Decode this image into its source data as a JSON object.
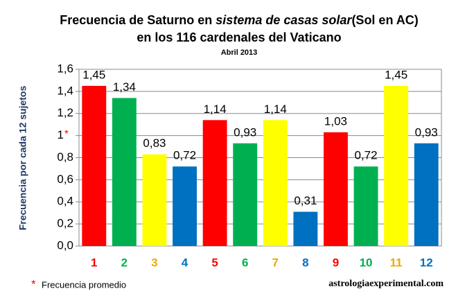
{
  "chart_data": {
    "type": "bar",
    "title": {
      "before": "Frecuencia de Saturno en ",
      "italic": "sistema de casas solar",
      "after": "(Sol en AC)"
    },
    "title_line2": "en los 116 cardenales del Vaticano",
    "subtitle": "Abril 2013",
    "y_label": "Frecuencia por cada 12 sujetos",
    "categories": [
      "1",
      "2",
      "3",
      "4",
      "5",
      "6",
      "7",
      "8",
      "9",
      "10",
      "11",
      "12"
    ],
    "values": [
      1.45,
      1.34,
      0.83,
      0.72,
      1.14,
      0.93,
      1.14,
      0.31,
      1.03,
      0.72,
      1.45,
      0.93
    ],
    "value_labels": [
      "1,45",
      "1,34",
      "0,83",
      "0,72",
      "1,14",
      "0,93",
      "1,14",
      "0,31",
      "1,03",
      "0,72",
      "1,45",
      "0,93"
    ],
    "colors": [
      "#ff0000",
      "#00b050",
      "#ffff00",
      "#0070c0",
      "#ff0000",
      "#00b050",
      "#ffff00",
      "#0070c0",
      "#ff0000",
      "#00b050",
      "#ffff00",
      "#0070c0"
    ],
    "category_label_colors": [
      "#ff0000",
      "#00b050",
      "#f0a800",
      "#0070c0",
      "#ff0000",
      "#00b050",
      "#f0a800",
      "#0070c0",
      "#ff0000",
      "#00b050",
      "#f0a800",
      "#0070c0"
    ],
    "ylim": [
      0,
      1.6
    ],
    "yticks": [
      {
        "value": 0,
        "label": "0,0"
      },
      {
        "value": 0.2,
        "label": "0,2"
      },
      {
        "value": 0.4,
        "label": "0,4"
      },
      {
        "value": 0.6,
        "label": "0,6"
      },
      {
        "value": 0.8,
        "label": "0,8"
      },
      1,
      {
        "value": 1.2,
        "label": "1,2"
      },
      {
        "value": 1.4,
        "label": "1,4"
      },
      {
        "value": 1.6,
        "label": "1,6"
      }
    ],
    "grid": true,
    "footnote": {
      "marker": "*",
      "text": "Frecuencia promedio"
    },
    "source": "astrologiaexperimental.com"
  }
}
